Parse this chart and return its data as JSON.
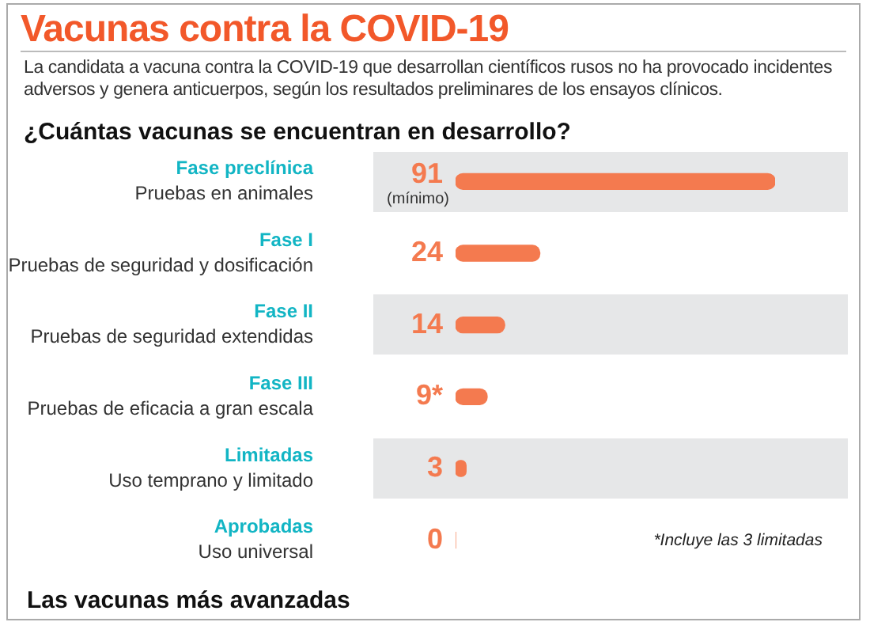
{
  "chart_data": {
    "type": "bar",
    "orientation": "horizontal",
    "title": "Vacunas contra la COVID-19",
    "subtitle": "La candidata a vacuna contra la COVID-19 que desarrollan científicos rusos no ha provocado incidentes adversos y genera anticuerpos, según los resultados preliminares de los ensayos clínicos.",
    "categories": [
      "Fase preclínica\nPruebas en animales",
      "Fase I\nPruebas de seguridad y dosificación",
      "Fase II\nPruebas de seguridad extendidas",
      "Fase III\nPruebas de eficacia a gran escala",
      "Limitadas\nUso temprano y limitado",
      "Aprobadas\nUso universal"
    ],
    "values": [
      91,
      24,
      14,
      9,
      3,
      0
    ],
    "value_labels": [
      "91",
      "24",
      "14",
      "9*",
      "3",
      "0"
    ],
    "color": "#f47a4f",
    "annotations": [
      "¿Cuántas vacunas se encuentran en desarrollo?",
      "(mínimo)",
      "*Incluye las 3 limitadas",
      "Las vacunas más avanzadas"
    ],
    "legend": false,
    "grid": false
  }
}
